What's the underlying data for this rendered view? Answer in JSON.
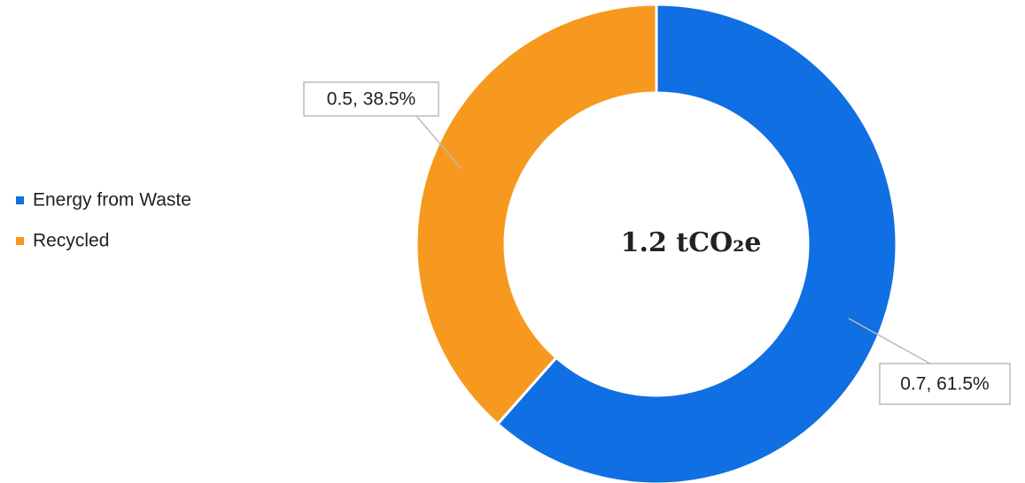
{
  "chart_data": {
    "type": "donut",
    "categories": [
      "Energy from Waste",
      "Recycled"
    ],
    "values": [
      61.5,
      38.5
    ],
    "value_labels": [
      "0.7, 61.5%",
      "0.5, 38.5%"
    ],
    "colors": [
      "#0f6fe3",
      "#f7991f"
    ],
    "center_label": "1.2 tCO₂e",
    "legend": "left"
  }
}
